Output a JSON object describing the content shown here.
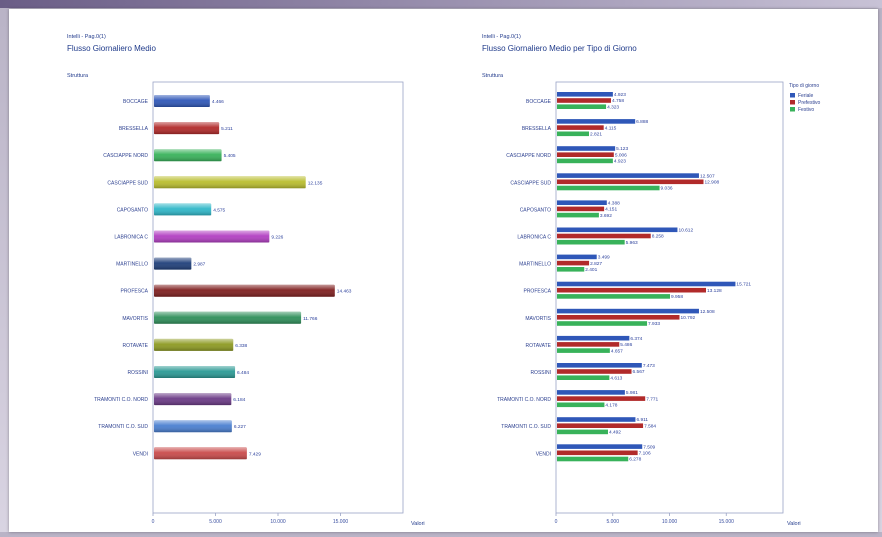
{
  "charts": {
    "left": {
      "crumb": "Intelli - Pag.0(1)",
      "header": "Flusso Giornaliero Medio",
      "axis_name": "Struttura",
      "corner_label": "Valori"
    },
    "right": {
      "crumb": "Intelli - Pag.0(1)",
      "header": "Flusso Giornaliero Medio per Tipo di Giorno",
      "axis_name": "Struttura",
      "corner_label": "Valori",
      "legend_title": "Tipo di giorno"
    }
  },
  "chart_data": [
    {
      "type": "bar",
      "orientation": "horizontal",
      "title": "Flusso Giornaliero Medio",
      "ylabel": "Struttura",
      "xlabel": "Valori",
      "categories": [
        "BOCCAGE",
        "BRESSELLA",
        "CASCIAPPE NORD",
        "CASCIAPPE SUD",
        "CAPOSANTO",
        "LABRONICA C",
        "MARTINELLO",
        "PROFESCA",
        "MAVORTIS",
        "ROTAVATE",
        "ROSSINI",
        "TRAMONTI C.O. NORD",
        "TRAMONTI C.O. SUD",
        "VENDI"
      ],
      "values": [
        4.466,
        5.211,
        5.405,
        12.135,
        4.575,
        9.226,
        2.987,
        14.463,
        11.766,
        6.338,
        6.484,
        6.184,
        6.227,
        7.429
      ],
      "value_labels": [
        "4.466",
        "5.211",
        "5.405",
        "12.135",
        "4.575",
        "9.226",
        "2.987",
        "14.463",
        "11.766",
        "6.338",
        "6.484",
        "6.184",
        "6.227",
        "7.429"
      ],
      "colors": [
        "#2f57b8",
        "#b12a2a",
        "#38b25a",
        "#b9bd2e",
        "#2fb7c8",
        "#b23fc2",
        "#1f3f7a",
        "#7f1f1f",
        "#2f8f5a",
        "#8d9a22",
        "#2c9a95",
        "#6b3a86",
        "#4a7fd0",
        "#c94a4a"
      ],
      "x_ticks": [
        "0",
        "5.000",
        "10.000",
        "15.000"
      ],
      "xlim": [
        0,
        20000
      ],
      "grid": false
    },
    {
      "type": "bar",
      "orientation": "horizontal",
      "title": "Flusso Giornaliero Medio per Tipo di Giorno",
      "ylabel": "Struttura",
      "xlabel": "Valori",
      "categories": [
        "BOCCAGE",
        "BRESSELLA",
        "CASCIAPPE NORD",
        "CASCIAPPE SUD",
        "CAPOSANTO",
        "LABRONICA C",
        "MARTINELLO",
        "PROFESCA",
        "MAVORTIS",
        "ROTAVATE",
        "ROSSINI",
        "TRAMONTI C.O. NORD",
        "TRAMONTI C.O. SUD",
        "VENDI"
      ],
      "series": [
        {
          "name": "Feriale",
          "color": "#2f57b8",
          "values": [
            4.923,
            6.888,
            5.123,
            12.507,
            4.388,
            10.612,
            3.499,
            15.721,
            12.508,
            6.374,
            7.473,
            5.981,
            6.911,
            7.509
          ],
          "value_labels": [
            "4.923",
            "6.888",
            "5.123",
            "12.507",
            "4.388",
            "10.612",
            "3.499",
            "15.721",
            "12.508",
            "6.374",
            "7.473",
            "5.981",
            "6.911",
            "7.509"
          ]
        },
        {
          "name": "Prefestivo",
          "color": "#b12a2a",
          "values": [
            4.758,
            4.115,
            5.006,
            12.908,
            4.151,
            8.258,
            2.827,
            13.128,
            10.792,
            5.486,
            6.567,
            7.771,
            7.584,
            7.106
          ],
          "value_labels": [
            "4.758",
            "4.115",
            "5.006",
            "12.908",
            "4.151",
            "8.258",
            "2.827",
            "13.128",
            "10.792",
            "5.486",
            "6.567",
            "7.771",
            "7.584",
            "7.106"
          ]
        },
        {
          "name": "Festivo",
          "color": "#38b25a",
          "values": [
            4.323,
            2.821,
            4.923,
            9.036,
            3.692,
            5.963,
            2.401,
            9.958,
            7.933,
            4.657,
            4.613,
            4.178,
            4.492,
            6.278
          ],
          "value_labels": [
            "4.323",
            "2.821",
            "4.923",
            "9.036",
            "3.692",
            "5.963",
            "2.401",
            "9.958",
            "7.933",
            "4.657",
            "4.613",
            "4.178",
            "4.492",
            "6.278"
          ]
        }
      ],
      "x_ticks": [
        "0",
        "5.000",
        "10.000",
        "15.000"
      ],
      "xlim": [
        0,
        20000
      ],
      "grid": false,
      "legend": "top-right"
    }
  ]
}
